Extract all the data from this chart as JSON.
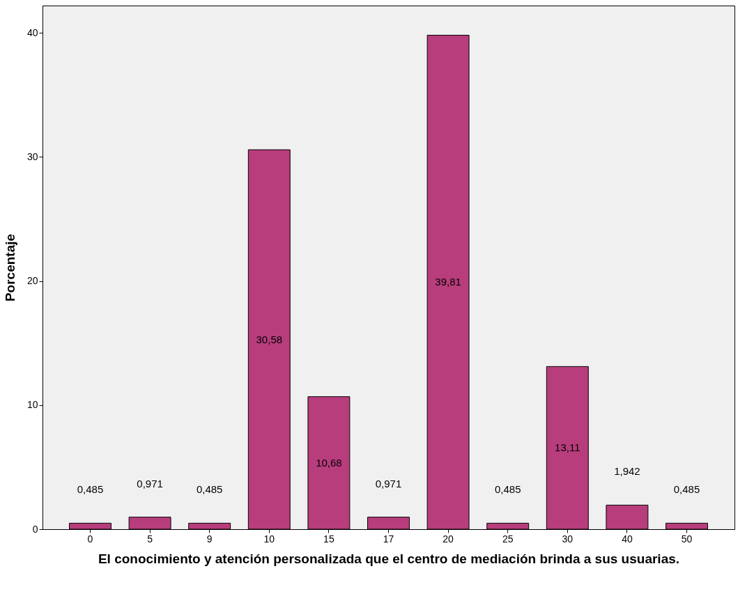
{
  "chart_data": {
    "type": "bar",
    "xlabel": "El conocimiento y atención personalizada que el centro de mediación brinda a sus usuarias.",
    "ylabel": "Porcentaje",
    "categories": [
      "0",
      "5",
      "9",
      "10",
      "15",
      "17",
      "20",
      "25",
      "30",
      "40",
      "50"
    ],
    "values": [
      0.485,
      0.971,
      0.485,
      30.58,
      10.68,
      0.971,
      39.81,
      0.485,
      13.11,
      1.942,
      0.485
    ],
    "value_labels": [
      "0,485",
      "0,971",
      "0,485",
      "30,58",
      "10,68",
      "0,971",
      "39,81",
      "0,485",
      "13,11",
      "1,942",
      "0,485"
    ],
    "color": "#b83d7c",
    "ylim": [
      0,
      42.2
    ],
    "yticks": [
      0,
      10,
      20,
      30,
      40
    ],
    "grid": false
  }
}
